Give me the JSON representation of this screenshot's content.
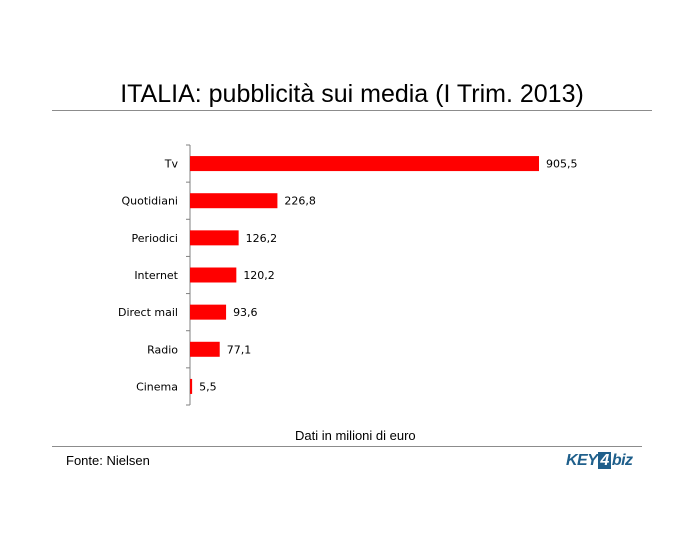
{
  "header": {
    "title": "ITALIA: pubblicità sui media (I Trim. 2013)"
  },
  "footer": {
    "note": "Dati in milioni di euro",
    "source": "Fonte: Nielsen",
    "logo_text": "KEY4biz"
  },
  "colors": {
    "bar": "#ff0000",
    "axis": "#808080",
    "rule": "#8c8c8c"
  },
  "chart_data": {
    "type": "bar",
    "orientation": "horizontal",
    "title": "ITALIA: pubblicità sui media (I Trim. 2013)",
    "xlabel": "Dati in milioni di euro",
    "ylabel": "",
    "categories": [
      "Tv",
      "Quotidiani",
      "Periodici",
      "Internet",
      "Direct mail",
      "Radio",
      "Cinema"
    ],
    "values": [
      905.5,
      226.8,
      126.2,
      120.2,
      93.6,
      77.1,
      5.5
    ],
    "value_labels": [
      "905,5",
      "226,8",
      "126,2",
      "120,2",
      "93,6",
      "77,1",
      "5,5"
    ],
    "xlim": [
      0,
      905.5
    ],
    "grid": false,
    "legend": "none"
  }
}
